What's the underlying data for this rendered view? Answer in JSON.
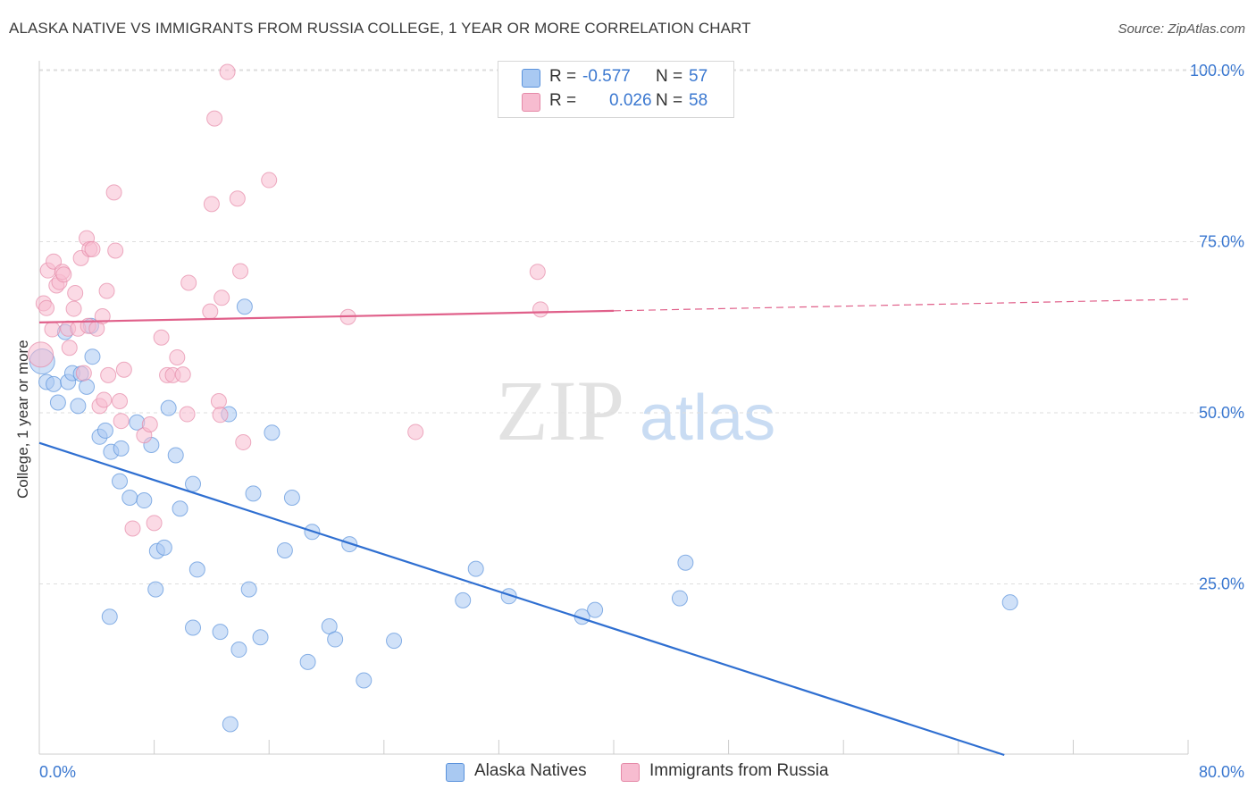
{
  "title": "ALASKA NATIVE VS IMMIGRANTS FROM RUSSIA COLLEGE, 1 YEAR OR MORE CORRELATION CHART",
  "source": "Source: ZipAtlas.com",
  "watermark": "ZIPatlas",
  "legend_top": [
    {
      "r_label": "R =",
      "r_value": "-0.577",
      "n_label": "N =",
      "n_value": "57",
      "color": "#a9c9f2"
    },
    {
      "r_label": "R =",
      "r_value": "0.026",
      "n_label": "N =",
      "n_value": "58",
      "color": "#f7bcd0"
    }
  ],
  "legend_bottom": [
    {
      "label": "Alaska Natives",
      "color": "#a9c9f2"
    },
    {
      "label": "Immigrants from Russia",
      "color": "#f7bcd0"
    }
  ],
  "chart_data": {
    "type": "scatter",
    "title": "ALASKA NATIVE VS IMMIGRANTS FROM RUSSIA COLLEGE, 1 YEAR OR MORE CORRELATION CHART",
    "xlabel": "",
    "ylabel": "College, 1 year or more",
    "xlim": [
      0,
      80
    ],
    "ylim": [
      0,
      100
    ],
    "x_tick_labels": [
      "0.0%",
      "80.0%"
    ],
    "y_tick_labels": [
      "25.0%",
      "50.0%",
      "75.0%",
      "100.0%"
    ],
    "y_ticks": [
      25,
      50,
      75,
      100
    ],
    "grid": true,
    "legend_position": "top-center",
    "series": [
      {
        "name": "Alaska Natives",
        "color": "#5b93dc",
        "fill": "#a9c9f2",
        "trend": {
          "x": [
            0,
            67.2
          ],
          "y": [
            45.6,
            0
          ],
          "dashed_to": null
        },
        "points": [
          [
            0.2,
            57.5
          ],
          [
            0.5,
            54.5
          ],
          [
            1.0,
            54.2
          ],
          [
            1.3,
            51.5
          ],
          [
            1.8,
            61.8
          ],
          [
            2.0,
            54.5
          ],
          [
            2.3,
            55.8
          ],
          [
            2.7,
            51.0
          ],
          [
            2.9,
            55.7
          ],
          [
            3.3,
            53.8
          ],
          [
            3.7,
            58.2
          ],
          [
            3.6,
            62.7
          ],
          [
            4.2,
            46.5
          ],
          [
            4.6,
            47.4
          ],
          [
            5.0,
            44.3
          ],
          [
            5.7,
            44.8
          ],
          [
            5.6,
            40.0
          ],
          [
            6.3,
            37.6
          ],
          [
            6.8,
            48.6
          ],
          [
            7.3,
            37.2
          ],
          [
            7.8,
            45.3
          ],
          [
            8.2,
            29.8
          ],
          [
            8.7,
            30.3
          ],
          [
            9.0,
            50.7
          ],
          [
            9.5,
            43.8
          ],
          [
            9.8,
            36.0
          ],
          [
            10.7,
            39.6
          ],
          [
            11.0,
            27.1
          ],
          [
            8.1,
            24.2
          ],
          [
            4.9,
            20.2
          ],
          [
            10.7,
            18.6
          ],
          [
            12.6,
            18.0
          ],
          [
            13.2,
            49.8
          ],
          [
            13.3,
            4.5
          ],
          [
            13.9,
            15.4
          ],
          [
            14.3,
            65.5
          ],
          [
            14.6,
            24.2
          ],
          [
            14.9,
            38.2
          ],
          [
            15.4,
            17.2
          ],
          [
            16.2,
            47.1
          ],
          [
            17.1,
            29.9
          ],
          [
            17.6,
            37.6
          ],
          [
            18.7,
            13.6
          ],
          [
            19.0,
            32.6
          ],
          [
            20.2,
            18.8
          ],
          [
            20.6,
            16.9
          ],
          [
            21.6,
            30.8
          ],
          [
            22.6,
            10.9
          ],
          [
            24.7,
            16.7
          ],
          [
            29.5,
            22.6
          ],
          [
            30.4,
            27.2
          ],
          [
            32.7,
            23.2
          ],
          [
            37.8,
            20.2
          ],
          [
            38.7,
            21.2
          ],
          [
            44.6,
            22.9
          ],
          [
            45.0,
            28.1
          ],
          [
            67.6,
            22.3
          ]
        ]
      },
      {
        "name": "Immigrants from Russia",
        "color": "#e58aa8",
        "fill": "#f7bcd0",
        "trend": {
          "x": [
            0,
            40
          ],
          "y": [
            63.2,
            64.9
          ],
          "dashed_to": [
            80,
            66.6
          ]
        },
        "points": [
          [
            0.1,
            58.5
          ],
          [
            0.3,
            66.0
          ],
          [
            0.5,
            65.3
          ],
          [
            0.6,
            70.8
          ],
          [
            0.9,
            62.2
          ],
          [
            1.0,
            72.1
          ],
          [
            1.2,
            68.6
          ],
          [
            1.4,
            69.1
          ],
          [
            1.6,
            70.6
          ],
          [
            1.7,
            70.2
          ],
          [
            2.0,
            62.3
          ],
          [
            2.1,
            59.5
          ],
          [
            2.4,
            65.2
          ],
          [
            2.5,
            67.5
          ],
          [
            2.7,
            62.3
          ],
          [
            2.9,
            72.6
          ],
          [
            3.1,
            55.8
          ],
          [
            3.4,
            62.7
          ],
          [
            3.3,
            75.5
          ],
          [
            3.5,
            73.9
          ],
          [
            3.7,
            73.9
          ],
          [
            4.0,
            62.3
          ],
          [
            4.2,
            51.0
          ],
          [
            4.4,
            64.1
          ],
          [
            4.5,
            51.9
          ],
          [
            4.7,
            67.8
          ],
          [
            4.8,
            55.5
          ],
          [
            5.2,
            82.2
          ],
          [
            5.3,
            73.7
          ],
          [
            5.7,
            48.8
          ],
          [
            5.6,
            51.7
          ],
          [
            5.9,
            56.3
          ],
          [
            6.5,
            33.1
          ],
          [
            7.3,
            46.7
          ],
          [
            7.7,
            48.3
          ],
          [
            8.0,
            33.9
          ],
          [
            8.5,
            61.0
          ],
          [
            8.9,
            55.5
          ],
          [
            9.3,
            55.5
          ],
          [
            9.6,
            58.1
          ],
          [
            10.0,
            55.6
          ],
          [
            10.3,
            49.8
          ],
          [
            10.4,
            69.0
          ],
          [
            11.9,
            64.8
          ],
          [
            12.0,
            80.5
          ],
          [
            12.2,
            93.0
          ],
          [
            12.5,
            51.7
          ],
          [
            12.6,
            49.7
          ],
          [
            12.7,
            66.8
          ],
          [
            13.1,
            99.8
          ],
          [
            13.8,
            81.3
          ],
          [
            14.0,
            70.7
          ],
          [
            14.2,
            45.7
          ],
          [
            16.0,
            84.0
          ],
          [
            26.2,
            47.2
          ],
          [
            21.5,
            64.0
          ],
          [
            34.7,
            70.6
          ],
          [
            34.9,
            65.1
          ]
        ]
      }
    ]
  }
}
